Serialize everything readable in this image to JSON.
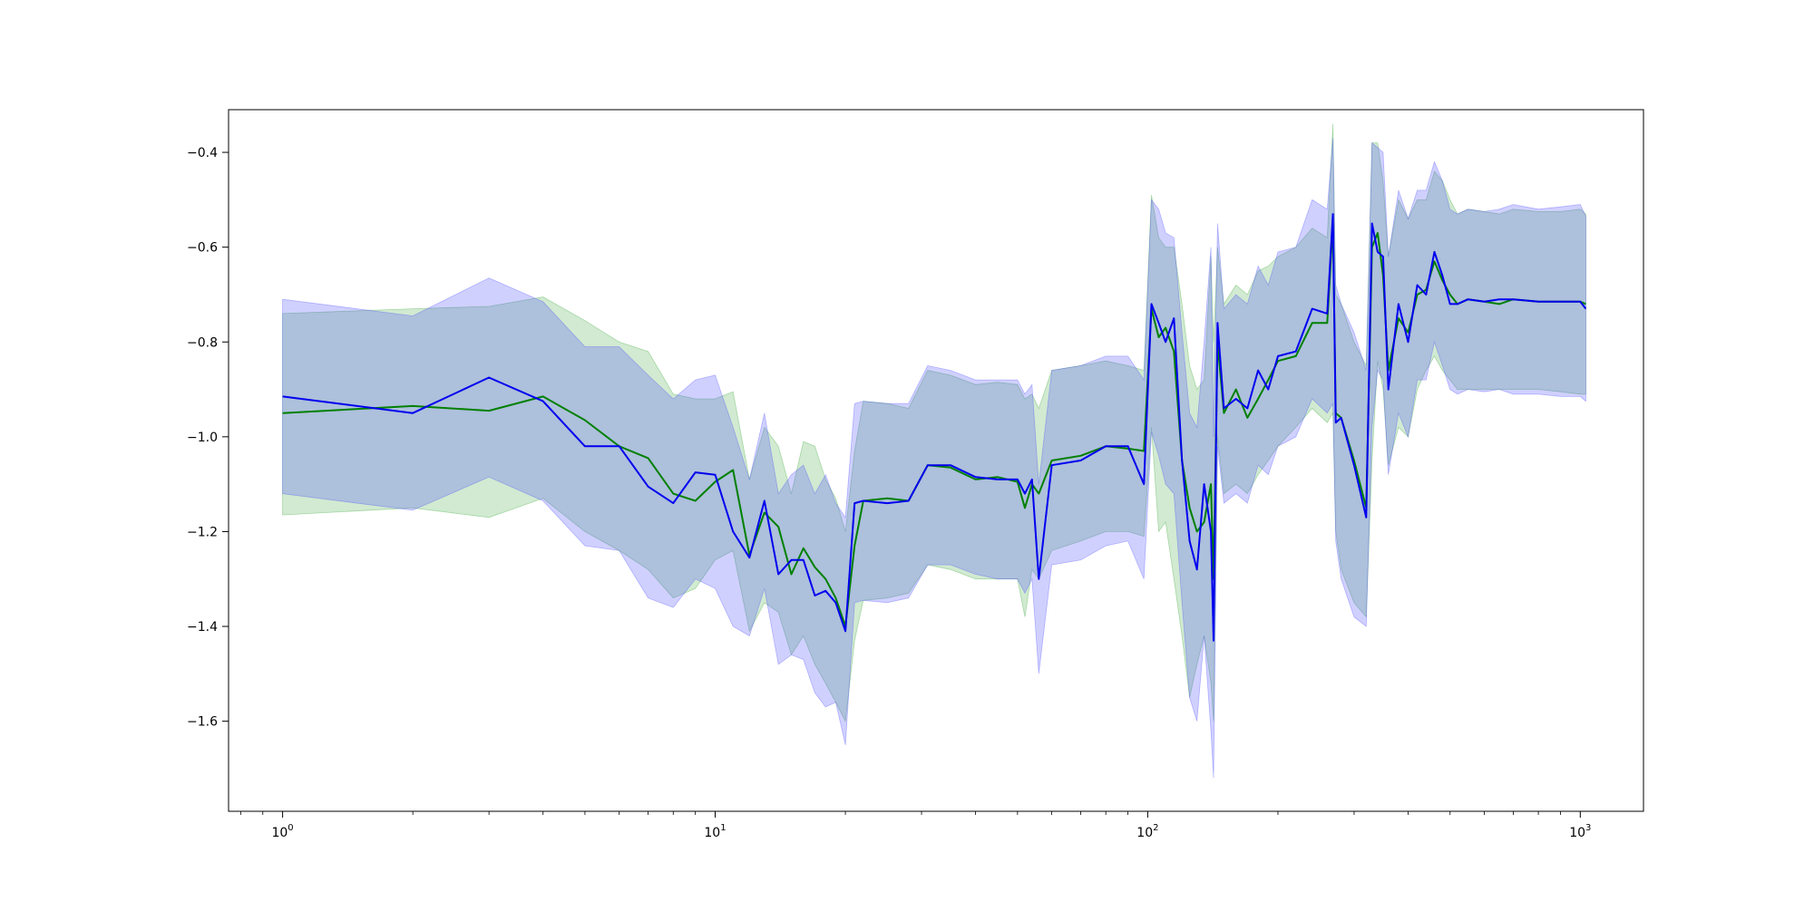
{
  "chart_data": {
    "type": "line",
    "title": "",
    "xlabel": "",
    "ylabel": "",
    "xscale": "log",
    "xlim": [
      0.75,
      1400
    ],
    "ylim": [
      -1.79,
      -0.31
    ],
    "grid": false,
    "x_ticks": [
      {
        "value": 1,
        "base": "10",
        "exp": "0"
      },
      {
        "value": 10,
        "base": "10",
        "exp": "1"
      },
      {
        "value": 100,
        "base": "10",
        "exp": "2"
      },
      {
        "value": 1000,
        "base": "10",
        "exp": "3"
      }
    ],
    "y_ticks": [
      {
        "value": -1.6,
        "label": "−1.6"
      },
      {
        "value": -1.4,
        "label": "−1.4"
      },
      {
        "value": -1.2,
        "label": "−1.2"
      },
      {
        "value": -1.0,
        "label": "−1.0"
      },
      {
        "value": -0.8,
        "label": "−0.8"
      },
      {
        "value": -0.6,
        "label": "−0.6"
      },
      {
        "value": -0.4,
        "label": "−0.4"
      }
    ],
    "series": [
      {
        "color": "#008000",
        "band_color": "#2ca02c",
        "band_opacity": 0.22,
        "x": [
          1,
          2,
          3,
          4,
          5,
          6,
          7,
          8,
          9,
          10,
          11,
          12,
          13,
          14,
          15,
          16,
          17,
          18,
          19,
          20,
          21,
          22,
          25,
          28,
          31,
          35,
          40,
          45,
          50,
          52,
          54,
          56,
          60,
          70,
          80,
          90,
          98,
          102,
          106,
          110,
          115,
          120,
          125,
          130,
          135,
          140,
          142,
          145,
          150,
          160,
          170,
          180,
          190,
          200,
          220,
          240,
          260,
          268,
          272,
          280,
          300,
          320,
          330,
          340,
          350,
          360,
          380,
          400,
          420,
          440,
          460,
          480,
          500,
          520,
          550,
          600,
          650,
          700,
          800,
          900,
          1000,
          1030
        ],
        "y": [
          -0.95,
          -0.935,
          -0.945,
          -0.915,
          -0.965,
          -1.02,
          -1.045,
          -1.12,
          -1.135,
          -1.095,
          -1.07,
          -1.25,
          -1.16,
          -1.19,
          -1.29,
          -1.235,
          -1.275,
          -1.3,
          -1.34,
          -1.4,
          -1.23,
          -1.135,
          -1.13,
          -1.135,
          -1.06,
          -1.065,
          -1.09,
          -1.085,
          -1.095,
          -1.15,
          -1.1,
          -1.12,
          -1.05,
          -1.04,
          -1.02,
          -1.025,
          -1.03,
          -0.73,
          -0.79,
          -0.77,
          -0.82,
          -1.05,
          -1.15,
          -1.2,
          -1.18,
          -1.1,
          -1.3,
          -0.8,
          -0.95,
          -0.9,
          -0.96,
          -0.92,
          -0.88,
          -0.84,
          -0.83,
          -0.76,
          -0.76,
          -0.55,
          -0.95,
          -0.96,
          -1.05,
          -1.15,
          -0.6,
          -0.57,
          -0.66,
          -0.86,
          -0.75,
          -0.78,
          -0.7,
          -0.69,
          -0.63,
          -0.67,
          -0.7,
          -0.72,
          -0.71,
          -0.715,
          -0.72,
          -0.71,
          -0.715,
          -0.715,
          -0.715,
          -0.72
        ],
        "lower": [
          -1.165,
          -1.15,
          -1.17,
          -1.13,
          -1.2,
          -1.24,
          -1.28,
          -1.34,
          -1.32,
          -1.26,
          -1.24,
          -1.41,
          -1.35,
          -1.37,
          -1.46,
          -1.42,
          -1.48,
          -1.52,
          -1.56,
          -1.6,
          -1.43,
          -1.345,
          -1.34,
          -1.33,
          -1.27,
          -1.28,
          -1.3,
          -1.3,
          -1.3,
          -1.38,
          -1.28,
          -1.3,
          -1.24,
          -1.22,
          -1.2,
          -1.2,
          -1.21,
          -0.98,
          -1.2,
          -1.18,
          -1.3,
          -1.42,
          -1.55,
          -1.48,
          -1.42,
          -1.52,
          -1.6,
          -1.0,
          -1.12,
          -1.1,
          -1.12,
          -1.08,
          -1.05,
          -1.02,
          -0.98,
          -0.94,
          -0.97,
          -0.95,
          -1.2,
          -1.28,
          -1.35,
          -1.38,
          -1.05,
          -0.84,
          -0.9,
          -1.06,
          -0.98,
          -1.0,
          -0.9,
          -0.86,
          -0.83,
          -0.86,
          -0.88,
          -0.9,
          -0.9,
          -0.9,
          -0.9,
          -0.9,
          -0.9,
          -0.905,
          -0.91,
          -0.91
        ],
        "upper": [
          -0.74,
          -0.73,
          -0.725,
          -0.705,
          -0.755,
          -0.8,
          -0.82,
          -0.91,
          -0.92,
          -0.92,
          -0.905,
          -1.09,
          -0.98,
          -1.02,
          -1.12,
          -1.01,
          -1.02,
          -1.09,
          -1.13,
          -1.2,
          -1.03,
          -0.925,
          -0.93,
          -0.94,
          -0.86,
          -0.87,
          -0.89,
          -0.885,
          -0.89,
          -0.92,
          -0.91,
          -0.94,
          -0.86,
          -0.85,
          -0.84,
          -0.85,
          -0.86,
          -0.49,
          -0.58,
          -0.6,
          -0.6,
          -0.72,
          -0.85,
          -0.9,
          -0.88,
          -0.62,
          -0.8,
          -0.6,
          -0.72,
          -0.68,
          -0.7,
          -0.65,
          -0.64,
          -0.62,
          -0.6,
          -0.56,
          -0.58,
          -0.34,
          -0.7,
          -0.72,
          -0.8,
          -0.85,
          -0.38,
          -0.38,
          -0.46,
          -0.62,
          -0.5,
          -0.54,
          -0.5,
          -0.5,
          -0.44,
          -0.46,
          -0.5,
          -0.53,
          -0.52,
          -0.525,
          -0.53,
          -0.52,
          -0.525,
          -0.525,
          -0.52,
          -0.53
        ]
      },
      {
        "color": "#0000ee",
        "band_color": "#4444ff",
        "band_opacity": 0.25,
        "x": [
          1,
          2,
          3,
          4,
          5,
          6,
          7,
          8,
          9,
          10,
          11,
          12,
          13,
          14,
          15,
          16,
          17,
          18,
          19,
          20,
          21,
          22,
          25,
          28,
          31,
          35,
          40,
          45,
          50,
          52,
          54,
          56,
          60,
          70,
          80,
          90,
          98,
          102,
          106,
          110,
          115,
          120,
          125,
          130,
          135,
          140,
          142,
          145,
          150,
          160,
          170,
          180,
          190,
          200,
          220,
          240,
          260,
          268,
          272,
          280,
          300,
          320,
          330,
          340,
          350,
          360,
          380,
          400,
          420,
          440,
          460,
          480,
          500,
          520,
          550,
          600,
          650,
          700,
          800,
          900,
          1000,
          1030
        ],
        "y": [
          -0.915,
          -0.95,
          -0.875,
          -0.925,
          -1.02,
          -1.02,
          -1.105,
          -1.14,
          -1.075,
          -1.08,
          -1.2,
          -1.255,
          -1.135,
          -1.29,
          -1.26,
          -1.26,
          -1.335,
          -1.325,
          -1.35,
          -1.41,
          -1.14,
          -1.135,
          -1.14,
          -1.135,
          -1.06,
          -1.06,
          -1.085,
          -1.09,
          -1.09,
          -1.12,
          -1.09,
          -1.3,
          -1.06,
          -1.05,
          -1.02,
          -1.02,
          -1.1,
          -0.72,
          -0.76,
          -0.8,
          -0.75,
          -1.05,
          -1.22,
          -1.28,
          -1.1,
          -1.2,
          -1.43,
          -0.76,
          -0.94,
          -0.92,
          -0.94,
          -0.86,
          -0.9,
          -0.83,
          -0.82,
          -0.73,
          -0.74,
          -0.53,
          -0.97,
          -0.96,
          -1.06,
          -1.17,
          -0.55,
          -0.61,
          -0.62,
          -0.9,
          -0.72,
          -0.8,
          -0.68,
          -0.7,
          -0.61,
          -0.66,
          -0.72,
          -0.72,
          -0.71,
          -0.715,
          -0.71,
          -0.71,
          -0.715,
          -0.715,
          -0.715,
          -0.73
        ],
        "lower": [
          -1.12,
          -1.155,
          -1.085,
          -1.135,
          -1.23,
          -1.24,
          -1.34,
          -1.36,
          -1.3,
          -1.32,
          -1.4,
          -1.42,
          -1.32,
          -1.48,
          -1.46,
          -1.47,
          -1.54,
          -1.57,
          -1.56,
          -1.65,
          -1.35,
          -1.345,
          -1.35,
          -1.34,
          -1.27,
          -1.27,
          -1.29,
          -1.3,
          -1.3,
          -1.33,
          -1.3,
          -1.5,
          -1.27,
          -1.26,
          -1.23,
          -1.22,
          -1.3,
          -0.99,
          -1.04,
          -1.1,
          -1.12,
          -1.35,
          -1.55,
          -1.6,
          -1.42,
          -1.62,
          -1.72,
          -1.02,
          -1.14,
          -1.12,
          -1.14,
          -1.06,
          -1.08,
          -1.02,
          -1.0,
          -0.92,
          -0.95,
          -0.93,
          -1.22,
          -1.3,
          -1.38,
          -1.4,
          -0.98,
          -0.86,
          -0.88,
          -1.08,
          -0.95,
          -1.0,
          -0.88,
          -0.88,
          -0.8,
          -0.85,
          -0.9,
          -0.91,
          -0.9,
          -0.905,
          -0.9,
          -0.91,
          -0.91,
          -0.915,
          -0.915,
          -0.925
        ],
        "upper": [
          -0.71,
          -0.745,
          -0.665,
          -0.715,
          -0.81,
          -0.81,
          -0.87,
          -0.92,
          -0.88,
          -0.87,
          -0.98,
          -1.09,
          -0.95,
          -1.12,
          -1.08,
          -1.06,
          -1.12,
          -1.08,
          -1.14,
          -1.17,
          -0.93,
          -0.925,
          -0.93,
          -0.93,
          -0.85,
          -0.86,
          -0.88,
          -0.88,
          -0.88,
          -0.91,
          -0.89,
          -1.1,
          -0.86,
          -0.85,
          -0.83,
          -0.83,
          -0.88,
          -0.5,
          -0.52,
          -0.57,
          -0.58,
          -0.78,
          -0.95,
          -0.98,
          -0.8,
          -0.6,
          -1.0,
          -0.55,
          -0.73,
          -0.7,
          -0.72,
          -0.64,
          -0.68,
          -0.61,
          -0.6,
          -0.5,
          -0.52,
          -0.37,
          -0.68,
          -0.72,
          -0.78,
          -0.86,
          -0.38,
          -0.39,
          -0.4,
          -0.62,
          -0.48,
          -0.54,
          -0.48,
          -0.48,
          -0.42,
          -0.46,
          -0.52,
          -0.53,
          -0.52,
          -0.525,
          -0.52,
          -0.51,
          -0.52,
          -0.515,
          -0.51,
          -0.535
        ]
      }
    ]
  }
}
